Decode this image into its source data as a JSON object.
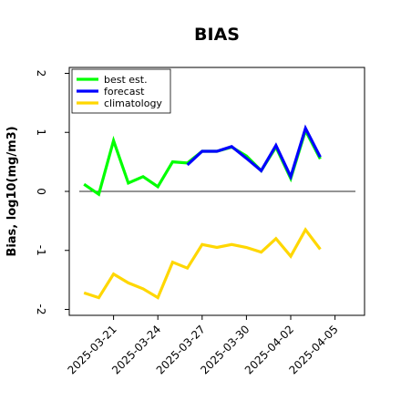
{
  "chart_data": {
    "type": "line",
    "title": "BIAS",
    "xlabel": "",
    "ylabel": "Bias, log10(mg/m3)",
    "ylim": [
      -2.1,
      2.1
    ],
    "yticks": [
      -2,
      -1,
      0,
      1,
      2
    ],
    "ytick_labels": [
      "-2",
      "-1",
      "0",
      "1",
      "2"
    ],
    "x": [
      "2025-03-19",
      "2025-03-20",
      "2025-03-21",
      "2025-03-22",
      "2025-03-23",
      "2025-03-24",
      "2025-03-25",
      "2025-03-26",
      "2025-03-27",
      "2025-03-28",
      "2025-03-29",
      "2025-03-30",
      "2025-03-31",
      "2025-04-01",
      "2025-04-02",
      "2025-04-03",
      "2025-04-04",
      "2025-04-05"
    ],
    "xticks": [
      "2025-03-21",
      "2025-03-24",
      "2025-03-27",
      "2025-03-30",
      "2025-04-02",
      "2025-04-05"
    ],
    "xlim": [
      "2025-03-18",
      "2025-04-07"
    ],
    "highlight_xtick": "2025-03-27",
    "highlight_color": "#2e8b57",
    "reference_line": 0,
    "legend_position": "upper-left",
    "series": [
      {
        "name": "best est.",
        "color": "#00ff00",
        "values": [
          0.12,
          -0.05,
          0.86,
          0.14,
          0.25,
          0.08,
          0.5,
          0.48,
          0.68,
          0.68,
          0.75,
          0.6,
          0.35,
          0.75,
          0.22,
          1.03,
          0.55,
          null
        ]
      },
      {
        "name": "forecast",
        "color": "#0000ff",
        "values": [
          null,
          null,
          null,
          null,
          null,
          null,
          null,
          0.45,
          0.68,
          0.68,
          0.76,
          0.56,
          0.35,
          0.78,
          0.25,
          1.07,
          0.58,
          null
        ]
      },
      {
        "name": "climatology",
        "color": "#ffd700",
        "values": [
          -1.72,
          -1.8,
          -1.4,
          -1.55,
          -1.65,
          -1.8,
          -1.2,
          -1.3,
          -0.9,
          -0.95,
          -0.9,
          -0.95,
          -1.03,
          -0.8,
          -1.1,
          -0.65,
          -0.98,
          null
        ]
      }
    ]
  }
}
